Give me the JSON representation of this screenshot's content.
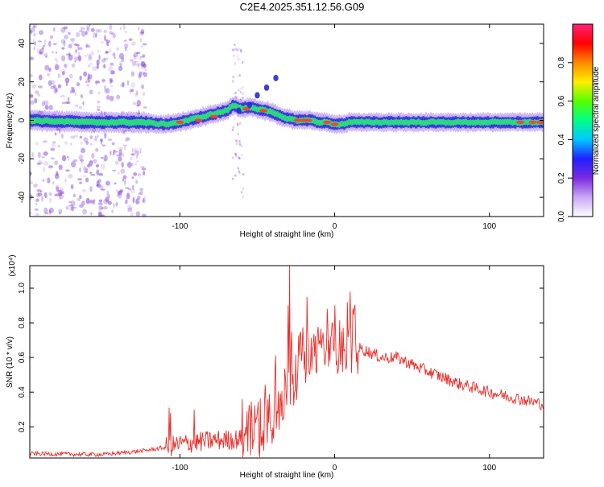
{
  "title": "C2E4.2025.351.12.56.G09",
  "colors": {
    "snr_line": "#e8302c",
    "spectrum_background": "#ffffff",
    "scatter": "#8a4fd8",
    "ridge_core": "#ff3b2f",
    "ridge_mid": "#2ce07a",
    "ridge_outer": "#2a2ad8",
    "ridge_halo": "#7a3be8"
  },
  "chart_data": [
    {
      "type": "heatmap",
      "name": "spectrogram",
      "title": "C2E4.2025.351.12.56.G09",
      "xlabel": "Height of straight line (km)",
      "ylabel": "Frequency (Hz)",
      "xlim": [
        -197,
        135
      ],
      "ylim": [
        -50,
        50
      ],
      "xticks": [
        -100,
        0,
        100
      ],
      "yticks": [
        -40,
        -20,
        0,
        20,
        40
      ],
      "colorbar": {
        "label": "Normalized spectral amplitude",
        "range": [
          0,
          1
        ],
        "ticks": [
          "0.0",
          "0.2",
          "0.4",
          "0.6",
          "0.8"
        ],
        "colormap": [
          "#ffffff",
          "#c9a8f5",
          "#7b2be0",
          "#2020ff",
          "#00c8ff",
          "#00ff88",
          "#55ff00",
          "#ffee00",
          "#ff8800",
          "#ff0000",
          "#ff2277"
        ]
      },
      "ridge": {
        "x": [
          -197,
          -160,
          -125,
          -110,
          -100,
          -90,
          -80,
          -70,
          -65,
          -60,
          -55,
          -50,
          -45,
          -40,
          -35,
          -30,
          -25,
          -20,
          -15,
          -10,
          -5,
          0,
          5,
          10,
          20,
          40,
          60,
          80,
          100,
          120,
          135
        ],
        "y": [
          0,
          -1,
          -1,
          -2,
          -1,
          1,
          3,
          5,
          8,
          6,
          7,
          6,
          5,
          4,
          2,
          1,
          0,
          0,
          0,
          -1,
          -1,
          -2,
          -2,
          -1,
          -1,
          -1,
          -1,
          -1,
          -1,
          -1,
          -1
        ]
      },
      "branch": {
        "x": [
          -62,
          -55,
          -50,
          -44,
          -38
        ],
        "y": [
          5,
          8,
          13,
          17,
          22
        ]
      }
    },
    {
      "type": "line",
      "name": "snr",
      "xlabel": "Height of straight line (km)",
      "ylabel": "SNR (10 * v/v)",
      "y_multiplier": "(x10⁴)",
      "xlim": [
        -197,
        135
      ],
      "ylim": [
        0.02,
        1.13
      ],
      "xticks": [
        -100,
        0,
        100
      ],
      "yticks": [
        0.2,
        0.4,
        0.6,
        0.8,
        1.0
      ],
      "ytick_labels": [
        "0.2",
        "0.4",
        "0.6",
        "0.8",
        "1.0"
      ],
      "envelope": {
        "x": [
          -197,
          -150,
          -125,
          -110,
          -100,
          -80,
          -60,
          -50,
          -40,
          -30,
          -25,
          -15,
          -5,
          0,
          10,
          20,
          30,
          40,
          60,
          80,
          100,
          120,
          135
        ],
        "y": [
          0.045,
          0.04,
          0.06,
          0.08,
          0.1,
          0.12,
          0.13,
          0.2,
          0.3,
          0.45,
          0.55,
          0.62,
          0.65,
          0.66,
          0.67,
          0.64,
          0.6,
          0.6,
          0.52,
          0.45,
          0.4,
          0.36,
          0.33
        ]
      },
      "spikes": {
        "x": [
          -107,
          -106,
          -91,
          -30,
          -29,
          -28,
          -18,
          -5,
          0,
          8,
          10
        ],
        "y": [
          0.31,
          0.28,
          0.3,
          0.9,
          1.13,
          0.75,
          0.95,
          0.88,
          0.9,
          0.92,
          0.98
        ]
      }
    }
  ]
}
